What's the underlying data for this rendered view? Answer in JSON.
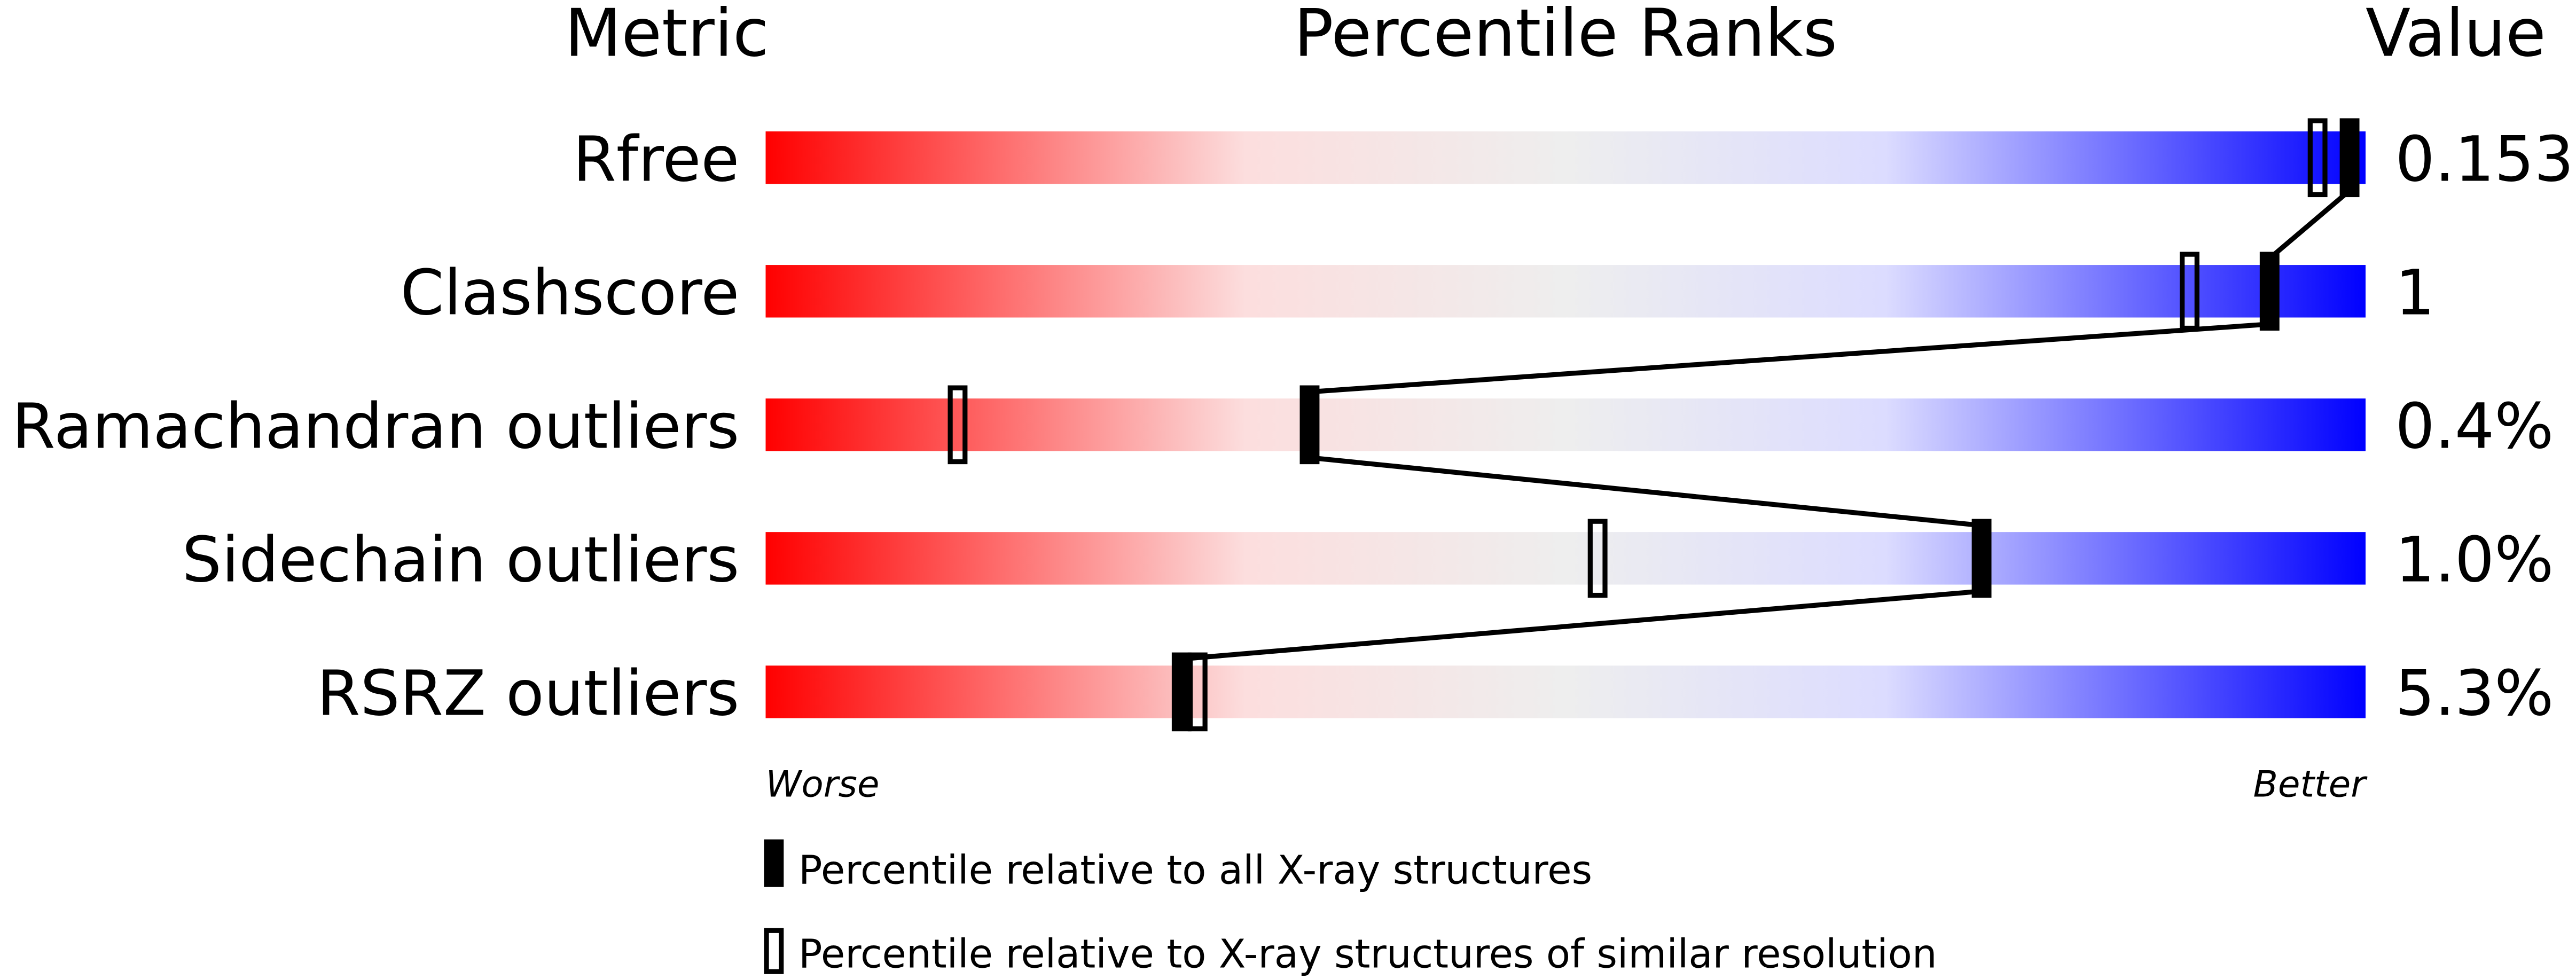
{
  "chart_data": {
    "type": "table",
    "headers": {
      "metric": "Metric",
      "ranks": "Percentile Ranks",
      "value": "Value"
    },
    "xlim": [
      0,
      100
    ],
    "rows": [
      {
        "metric": "Rfree",
        "value": "0.153",
        "percentile_all": 99,
        "percentile_similar": 97
      },
      {
        "metric": "Clashscore",
        "value": "1",
        "percentile_all": 94,
        "percentile_similar": 89
      },
      {
        "metric": "Ramachandran outliers",
        "value": "0.4%",
        "percentile_all": 34,
        "percentile_similar": 12
      },
      {
        "metric": "Sidechain outliers",
        "value": "1.0%",
        "percentile_all": 76,
        "percentile_similar": 52
      },
      {
        "metric": "RSRZ outliers",
        "value": "5.3%",
        "percentile_all": 26,
        "percentile_similar": 27
      }
    ],
    "axis_left_label": "Worse",
    "axis_right_label": "Better",
    "legend": [
      {
        "marker": "filled",
        "label": "Percentile relative to all X-ray structures"
      },
      {
        "marker": "open",
        "label": "Percentile relative to X-ray structures of similar resolution"
      }
    ],
    "colors": {
      "worse": "#ff0000",
      "middle": "#eeeeee",
      "better": "#0000ff",
      "marker": "#000000"
    }
  }
}
